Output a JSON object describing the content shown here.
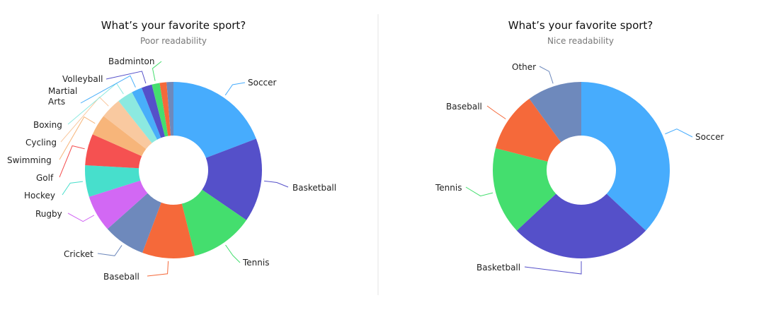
{
  "chart_data": [
    {
      "type": "pie",
      "title": "What’s your favorite sport?",
      "subtitle": "Poor readability",
      "categories": [
        "Soccer",
        "Basketball",
        "Tennis",
        "Baseball",
        "Cricket",
        "Rugby",
        "Hockey",
        "Golf",
        "Swimming",
        "Cycling",
        "Boxing",
        "Martial Arts",
        "Volleyball",
        "Badminton"
      ],
      "values": [
        20,
        16,
        12,
        10,
        8,
        7,
        6,
        6,
        4,
        4,
        3,
        2,
        2,
        1.5
      ],
      "colors": [
        "#47acfd",
        "#5550c9",
        "#44de6e",
        "#f5693a",
        "#6e89bc",
        "#d268f4",
        "#47dfcc",
        "#f55151",
        "#f7b57a",
        "#f9c9a0",
        "#8ce9e0",
        "#48aefa",
        "#5550c9",
        "#44de6e"
      ],
      "extra_slices": [
        {
          "value": 1.3,
          "color": "#f5693a"
        },
        {
          "value": 1.3,
          "color": "#6e89bc"
        }
      ],
      "label_lines": [
        [
          "Soccer"
        ],
        [
          "Basketball"
        ],
        [
          "Tennis"
        ],
        [
          "Baseball"
        ],
        [
          "Cricket"
        ],
        [
          "Rugby"
        ],
        [
          "Hockey"
        ],
        [
          "Golf"
        ],
        [
          "Swimming"
        ],
        [
          "Cycling"
        ],
        [
          "Boxing"
        ],
        [
          "Martial",
          "Arts"
        ],
        [
          "Volleyball"
        ],
        [
          "Badminton"
        ]
      ],
      "legend": "callout labels",
      "grid": false
    },
    {
      "type": "pie",
      "title": "What’s your favorite sport?",
      "subtitle": "Nice readability",
      "categories": [
        "Soccer",
        "Basketball",
        "Tennis",
        "Baseball",
        "Other"
      ],
      "values": [
        37,
        26,
        16,
        11,
        10
      ],
      "colors": [
        "#47acfd",
        "#5550c9",
        "#44de6e",
        "#f5693a",
        "#6e89bc"
      ],
      "label_lines": [
        [
          "Soccer"
        ],
        [
          "Basketball"
        ],
        [
          "Tennis"
        ],
        [
          "Baseball"
        ],
        [
          "Other"
        ]
      ],
      "legend": "callout labels",
      "grid": false
    }
  ]
}
